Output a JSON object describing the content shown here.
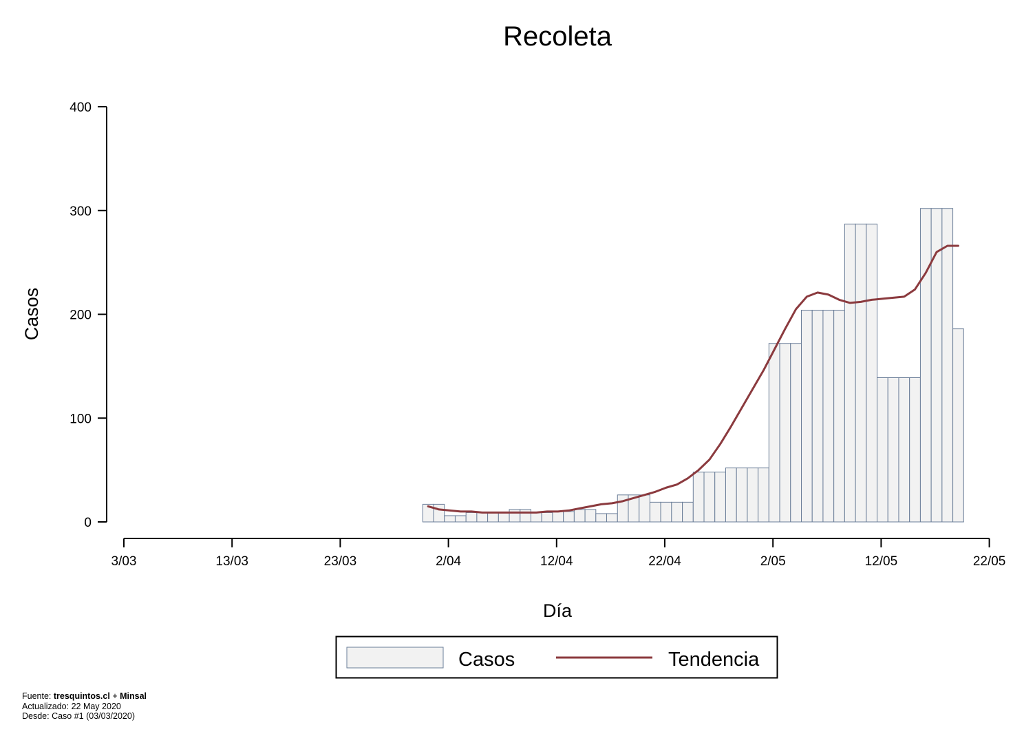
{
  "chart_data": {
    "type": "bar",
    "title": "Recoleta",
    "xlabel": "Día",
    "ylabel": "Casos",
    "x_start": "3/03",
    "x_tick_labels": [
      "3/03",
      "13/03",
      "23/03",
      "2/04",
      "12/04",
      "22/04",
      "2/05",
      "12/05",
      "22/05"
    ],
    "y_ticks": [
      0,
      100,
      200,
      300,
      400
    ],
    "ylim": [
      0,
      400
    ],
    "grid": false,
    "legend_position": "bottom",
    "series": [
      {
        "name": "Casos",
        "kind": "bar",
        "x": [
          "31/03",
          "1/04",
          "2/04",
          "3/04",
          "4/04",
          "5/04",
          "6/04",
          "7/04",
          "8/04",
          "9/04",
          "10/04",
          "11/04",
          "12/04",
          "13/04",
          "14/04",
          "15/04",
          "16/04",
          "17/04",
          "18/04",
          "19/04",
          "20/04",
          "21/04",
          "22/04",
          "23/04",
          "24/04",
          "25/04",
          "26/04",
          "27/04",
          "28/04",
          "29/04",
          "30/04",
          "1/05",
          "2/05",
          "3/05",
          "4/05",
          "5/05",
          "6/05",
          "7/05",
          "8/05",
          "9/05",
          "10/05",
          "11/05",
          "12/05",
          "13/05",
          "14/05",
          "15/05",
          "16/05",
          "17/05",
          "18/05",
          "19/05"
        ],
        "values": [
          17,
          17,
          6,
          6,
          9,
          9,
          9,
          9,
          12,
          12,
          9,
          9,
          10,
          10,
          12,
          12,
          8,
          8,
          26,
          26,
          26,
          19,
          19,
          19,
          19,
          48,
          48,
          48,
          52,
          52,
          52,
          52,
          172,
          172,
          172,
          204,
          204,
          204,
          204,
          287,
          287,
          287,
          139,
          139,
          139,
          139,
          302,
          302,
          302,
          186
        ]
      },
      {
        "name": "Tendencia",
        "kind": "line",
        "x": [
          "31/03",
          "1/04",
          "2/04",
          "3/04",
          "4/04",
          "5/04",
          "6/04",
          "7/04",
          "8/04",
          "9/04",
          "10/04",
          "11/04",
          "12/04",
          "13/04",
          "14/04",
          "15/04",
          "16/04",
          "17/04",
          "18/04",
          "19/04",
          "20/04",
          "21/04",
          "22/04",
          "23/04",
          "24/04",
          "25/04",
          "26/04",
          "27/04",
          "28/04",
          "29/04",
          "30/04",
          "1/05",
          "2/05",
          "3/05",
          "4/05",
          "5/05",
          "6/05",
          "7/05",
          "8/05",
          "9/05",
          "10/05",
          "11/05",
          "12/05",
          "13/05",
          "14/05",
          "15/05",
          "16/05",
          "17/05",
          "18/05",
          "19/05"
        ],
        "values": [
          15,
          12,
          11,
          10,
          10,
          9,
          9,
          9,
          9,
          9,
          9,
          10,
          10,
          11,
          13,
          15,
          17,
          18,
          20,
          23,
          26,
          29,
          33,
          36,
          42,
          50,
          60,
          75,
          92,
          110,
          128,
          146,
          166,
          186,
          205,
          217,
          221,
          219,
          214,
          211,
          212,
          214,
          215,
          216,
          217,
          224,
          240,
          260,
          266,
          266
        ]
      }
    ]
  },
  "legend": {
    "items": [
      "Casos",
      "Tendencia"
    ]
  },
  "colors": {
    "bar_fill": "#f2f2f2",
    "bar_stroke": "#6a7d98",
    "trend_line": "#8b3a3e"
  },
  "footer": {
    "line1_prefix": "Fuente: ",
    "line1_bold1": "tresquintos.cl",
    "line1_mid": " + ",
    "line1_bold2": "Minsal",
    "line2": "Actualizado: 22 May 2020",
    "line3": "Desde: Caso #1  (03/03/2020)"
  }
}
